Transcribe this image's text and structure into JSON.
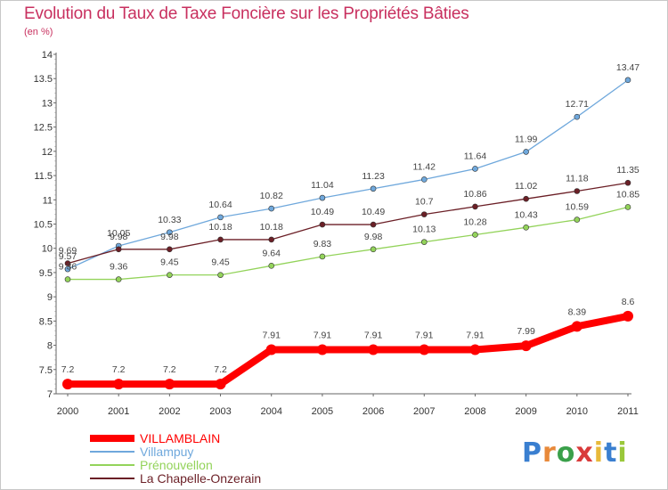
{
  "header": {
    "title": "Evolution du Taux de Taxe Foncière sur les Propriétés Bâties",
    "subtitle": "(en %)"
  },
  "logo": {
    "text": "Proxiti",
    "letter_colors": [
      "#3a7fd0",
      "#e8893a",
      "#3aa04a",
      "#d93a3a",
      "#e8b93a",
      "#3a7fd0",
      "#9ac83a"
    ]
  },
  "chart_data": {
    "type": "line",
    "title": "Evolution du Taux de Taxe Foncière sur les Propriétés Bâties",
    "ylabel": "(en %)",
    "x": [
      "2000",
      "2001",
      "2002",
      "2003",
      "2004",
      "2005",
      "2006",
      "2007",
      "2008",
      "2009",
      "2010",
      "2011"
    ],
    "ylim": [
      7,
      14
    ],
    "yticks": [
      "7",
      "7.5",
      "8",
      "8.5",
      "9",
      "9.5",
      "10",
      "10.5",
      "11",
      "11.5",
      "12",
      "12.5",
      "13",
      "13.5",
      "14"
    ],
    "grid": false,
    "legend_position": "bottom-left",
    "series": [
      {
        "name": "VILLAMBLAIN",
        "color": "#ff0000",
        "values": [
          7.2,
          7.2,
          7.2,
          7.2,
          7.91,
          7.91,
          7.91,
          7.91,
          7.91,
          7.99,
          8.39,
          8.6
        ],
        "labels": [
          "7.2",
          "7.2",
          "7.2",
          "7.2",
          "7.91",
          "7.91",
          "7.91",
          "7.91",
          "7.91",
          "7.99",
          "8.39",
          "8.6"
        ]
      },
      {
        "name": "Villampuy",
        "color": "#6fa8dc",
        "values": [
          9.57,
          10.05,
          10.33,
          10.64,
          10.82,
          11.04,
          11.23,
          11.42,
          11.64,
          11.99,
          12.71,
          13.47
        ],
        "labels": [
          "9.57",
          "10.05",
          "10.33",
          "10.64",
          "10.82",
          "11.04",
          "11.23",
          "11.42",
          "11.64",
          "11.99",
          "12.71",
          "13.47"
        ]
      },
      {
        "name": "Prénouvellon",
        "color": "#93d35a",
        "values": [
          9.36,
          9.36,
          9.45,
          9.45,
          9.64,
          9.83,
          9.98,
          10.13,
          10.28,
          10.43,
          10.59,
          10.85
        ],
        "labels": [
          "9.36",
          "9.36",
          "9.45",
          "9.45",
          "9.64",
          "9.83",
          "9.98",
          "10.13",
          "10.28",
          "10.43",
          "10.59",
          "10.85"
        ]
      },
      {
        "name": "La Chapelle-Onzerain",
        "color": "#6b1f26",
        "values": [
          9.69,
          9.98,
          9.98,
          10.18,
          10.18,
          10.49,
          10.49,
          10.7,
          10.86,
          11.02,
          11.18,
          11.35
        ],
        "labels": [
          "9.69",
          "9.98",
          "9.98",
          "10.18",
          "10.18",
          "10.49",
          "10.49",
          "10.7",
          "10.86",
          "11.02",
          "11.18",
          "11.35"
        ]
      }
    ]
  }
}
